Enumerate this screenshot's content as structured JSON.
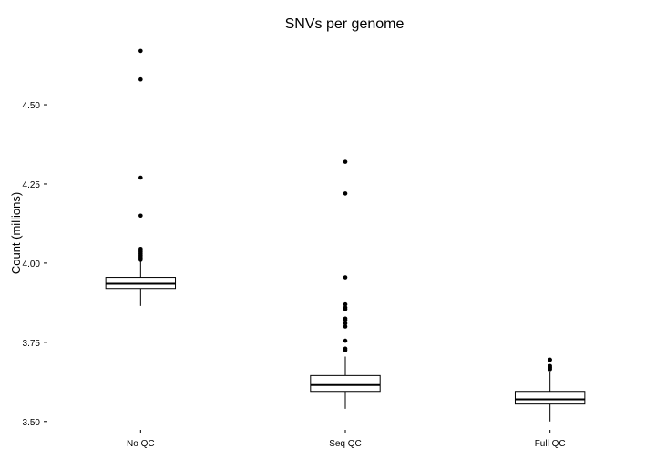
{
  "chart_data": {
    "type": "box",
    "title": "SNVs per genome",
    "xlabel": "",
    "ylabel": "Count (millions)",
    "ylim": [
      3.485,
      4.71
    ],
    "yticks": [
      3.5,
      3.75,
      4.0,
      4.25,
      4.5
    ],
    "ytick_labels": [
      "3.50",
      "3.75",
      "4.00",
      "4.25",
      "4.50"
    ],
    "grid": false,
    "categories": [
      "No QC",
      "Seq QC",
      "Full QC"
    ],
    "boxes": [
      {
        "category": "No QC",
        "whisker_low": 3.865,
        "q1": 3.92,
        "median": 3.935,
        "q3": 3.955,
        "whisker_high": 4.005,
        "outliers": [
          4.67,
          4.58,
          4.27,
          4.15,
          4.045,
          4.04,
          4.035,
          4.03,
          4.025,
          4.02,
          4.015,
          4.01
        ]
      },
      {
        "category": "Seq QC",
        "whisker_low": 3.54,
        "q1": 3.595,
        "median": 3.615,
        "q3": 3.645,
        "whisker_high": 3.705,
        "outliers": [
          4.32,
          4.22,
          3.955,
          3.87,
          3.86,
          3.855,
          3.825,
          3.82,
          3.81,
          3.8,
          3.755,
          3.73,
          3.725
        ]
      },
      {
        "category": "Full QC",
        "whisker_low": 3.5,
        "q1": 3.555,
        "median": 3.57,
        "q3": 3.595,
        "whisker_high": 3.655,
        "outliers": [
          3.695,
          3.675,
          3.67,
          3.665
        ]
      }
    ]
  }
}
